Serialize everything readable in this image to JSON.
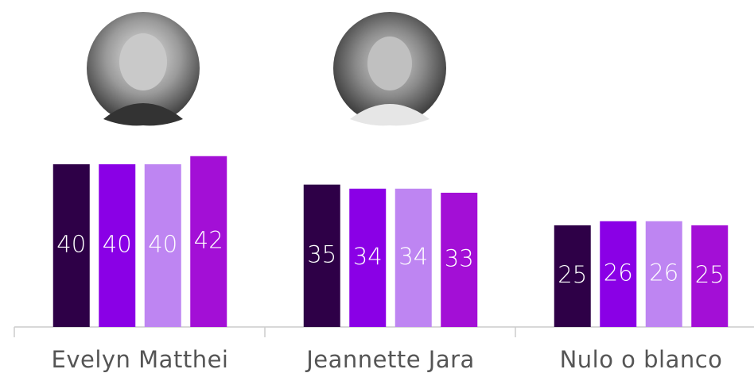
{
  "chart_data": {
    "type": "bar",
    "categories": [
      "Evelyn Matthei",
      "Jeannette Jara",
      "Nulo o blanco"
    ],
    "series": [
      {
        "color": "#2e0047",
        "values": [
          40,
          35,
          25
        ]
      },
      {
        "color": "#8a00e6",
        "values": [
          40,
          34,
          26
        ]
      },
      {
        "color": "#be85f2",
        "values": [
          40,
          34,
          26
        ]
      },
      {
        "color": "#a30fd6",
        "values": [
          42,
          33,
          25
        ]
      }
    ]
  }
}
